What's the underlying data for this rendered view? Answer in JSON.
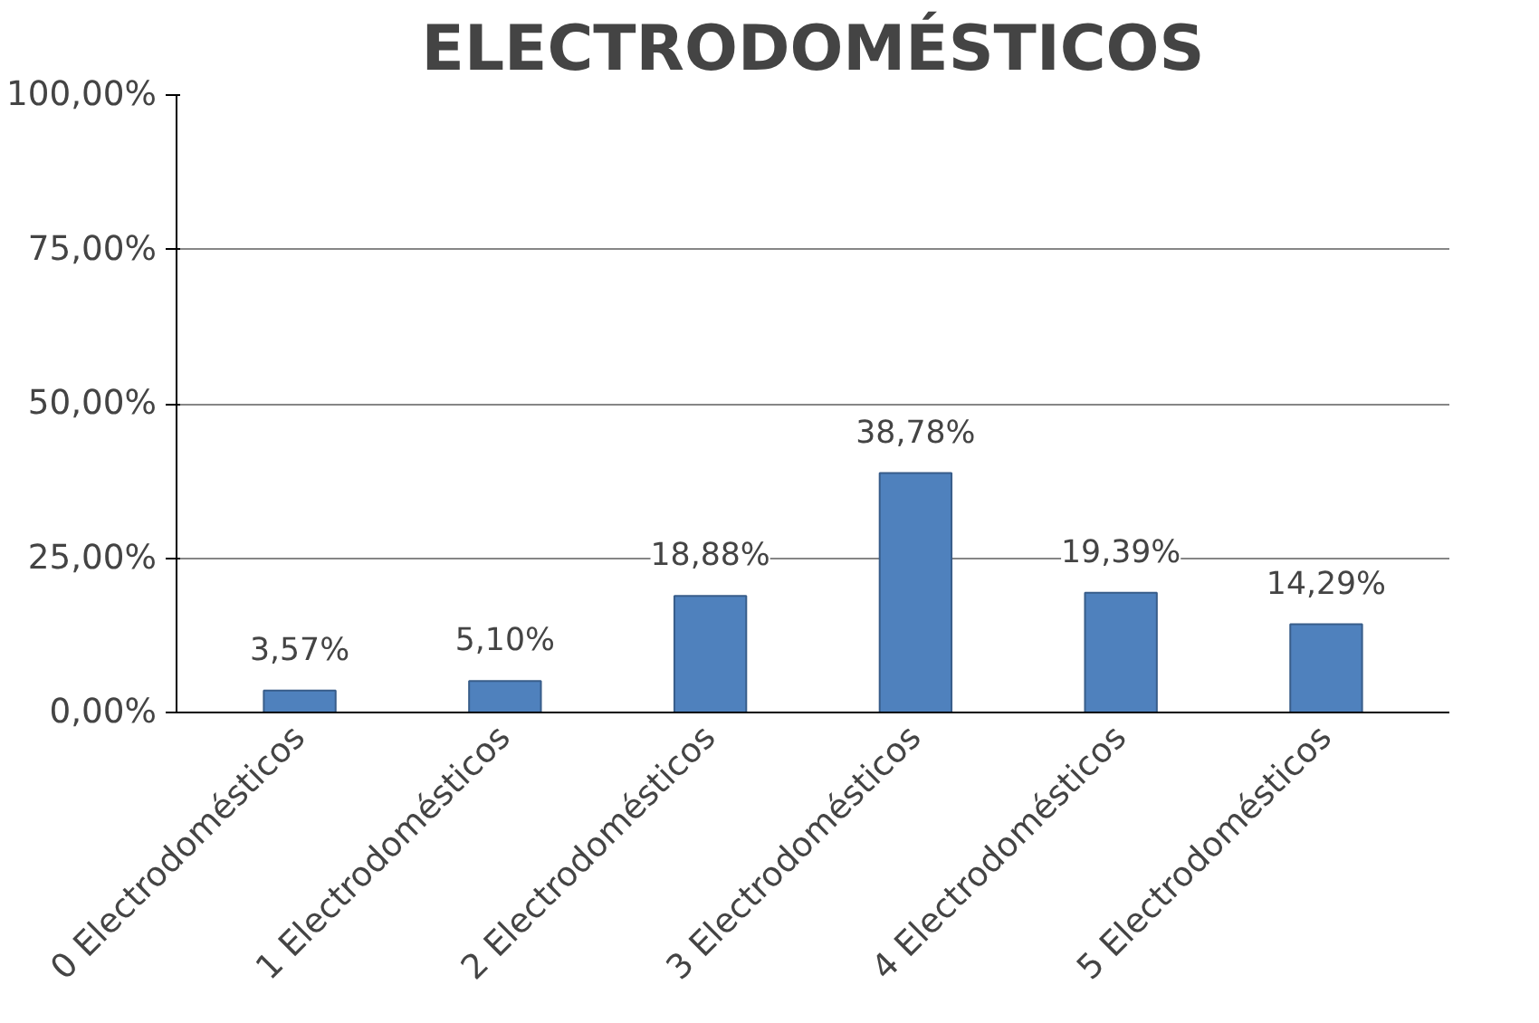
{
  "chart_data": {
    "type": "bar",
    "title": "ELECTRODOMÉSTICOS",
    "categories": [
      "0 Electrodomésticos",
      "1 Electrodomésticos",
      "2 Electrodomésticos",
      "3 Electrodomésticos",
      "4 Electrodomésticos",
      "5 Electrodomésticos"
    ],
    "values": [
      3.57,
      5.1,
      18.88,
      38.78,
      19.39,
      14.29
    ],
    "value_labels": [
      "3,57%",
      "5,10%",
      "18,88%",
      "38,78%",
      "19,39%",
      "14,29%"
    ],
    "color": "#4f81bd",
    "ylim": [
      0,
      100
    ],
    "yticks": [
      {
        "value": 0,
        "label": "0,00%"
      },
      {
        "value": 25,
        "label": "25,00%"
      },
      {
        "value": 50,
        "label": "50,00%"
      },
      {
        "value": 75,
        "label": "75,00%"
      },
      {
        "value": 100,
        "label": "100,00%"
      }
    ],
    "grid": "y"
  }
}
